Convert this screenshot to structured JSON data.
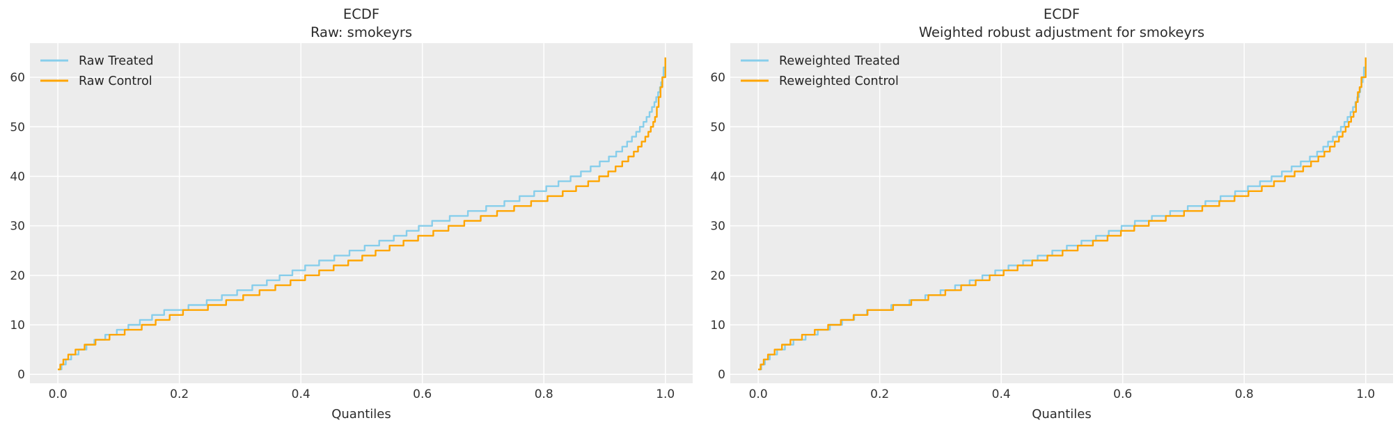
{
  "figure": {
    "background": "#ffffff",
    "plot_background": "#ECECEC",
    "grid_color": "#ffffff",
    "text_color": "#2b2b2b",
    "tick_color": "#333333",
    "treated_color": "#87CEEB",
    "control_color": "#FFA500"
  },
  "chart_data": [
    {
      "type": "line",
      "step": true,
      "title": "ECDF",
      "subtitle": "Raw: smokeyrs",
      "xlabel": "Quantiles",
      "ylabel": "",
      "grid": true,
      "legend_position": "upper-left",
      "xlim": [
        -0.046,
        1.045
      ],
      "ylim": [
        -1.8,
        66.9
      ],
      "xticks": [
        0.0,
        0.2,
        0.4,
        0.6,
        0.8,
        1.0
      ],
      "xtick_labels": [
        "0.0",
        "0.2",
        "0.4",
        "0.6",
        "0.8",
        "1.0"
      ],
      "yticks": [
        0,
        10,
        20,
        30,
        40,
        50,
        60
      ],
      "ytick_labels": [
        "0",
        "10",
        "20",
        "30",
        "40",
        "50",
        "60"
      ],
      "series": [
        {
          "name": "Raw Treated",
          "color": "#87CEEB",
          "points": [
            [
              0.0,
              1
            ],
            [
              0.006,
              2
            ],
            [
              0.013,
              3
            ],
            [
              0.022,
              4
            ],
            [
              0.034,
              5
            ],
            [
              0.047,
              6
            ],
            [
              0.06,
              7
            ],
            [
              0.078,
              8
            ],
            [
              0.097,
              9
            ],
            [
              0.116,
              10
            ],
            [
              0.135,
              11
            ],
            [
              0.155,
              12
            ],
            [
              0.175,
              13
            ],
            [
              0.215,
              14
            ],
            [
              0.245,
              15
            ],
            [
              0.27,
              16
            ],
            [
              0.295,
              17
            ],
            [
              0.32,
              18
            ],
            [
              0.344,
              19
            ],
            [
              0.365,
              20
            ],
            [
              0.386,
              21
            ],
            [
              0.407,
              22
            ],
            [
              0.43,
              23
            ],
            [
              0.455,
              24
            ],
            [
              0.48,
              25
            ],
            [
              0.505,
              26
            ],
            [
              0.529,
              27
            ],
            [
              0.553,
              28
            ],
            [
              0.574,
              29
            ],
            [
              0.594,
              30
            ],
            [
              0.616,
              31
            ],
            [
              0.645,
              32
            ],
            [
              0.675,
              33
            ],
            [
              0.705,
              34
            ],
            [
              0.735,
              35
            ],
            [
              0.76,
              36
            ],
            [
              0.784,
              37
            ],
            [
              0.804,
              38
            ],
            [
              0.824,
              39
            ],
            [
              0.844,
              40
            ],
            [
              0.861,
              41
            ],
            [
              0.877,
              42
            ],
            [
              0.892,
              43
            ],
            [
              0.907,
              44
            ],
            [
              0.919,
              45
            ],
            [
              0.929,
              46
            ],
            [
              0.937,
              47
            ],
            [
              0.945,
              48
            ],
            [
              0.952,
              49
            ],
            [
              0.958,
              50
            ],
            [
              0.964,
              51
            ],
            [
              0.969,
              52
            ],
            [
              0.974,
              53
            ],
            [
              0.978,
              54
            ],
            [
              0.982,
              55
            ],
            [
              0.985,
              56
            ],
            [
              0.988,
              57
            ],
            [
              0.991,
              58
            ],
            [
              0.993,
              59
            ],
            [
              0.995,
              60
            ],
            [
              0.997,
              62
            ],
            [
              1.0,
              64
            ]
          ]
        },
        {
          "name": "Raw Control",
          "color": "#FFA500",
          "points": [
            [
              0.0,
              1
            ],
            [
              0.004,
              2
            ],
            [
              0.009,
              3
            ],
            [
              0.017,
              4
            ],
            [
              0.029,
              5
            ],
            [
              0.044,
              6
            ],
            [
              0.062,
              7
            ],
            [
              0.085,
              8
            ],
            [
              0.11,
              9
            ],
            [
              0.138,
              10
            ],
            [
              0.161,
              11
            ],
            [
              0.184,
              12
            ],
            [
              0.206,
              13
            ],
            [
              0.247,
              14
            ],
            [
              0.277,
              15
            ],
            [
              0.305,
              16
            ],
            [
              0.332,
              17
            ],
            [
              0.358,
              18
            ],
            [
              0.383,
              19
            ],
            [
              0.407,
              20
            ],
            [
              0.43,
              21
            ],
            [
              0.454,
              22
            ],
            [
              0.478,
              23
            ],
            [
              0.501,
              24
            ],
            [
              0.523,
              25
            ],
            [
              0.546,
              26
            ],
            [
              0.569,
              27
            ],
            [
              0.593,
              28
            ],
            [
              0.618,
              29
            ],
            [
              0.643,
              30
            ],
            [
              0.669,
              31
            ],
            [
              0.696,
              32
            ],
            [
              0.723,
              33
            ],
            [
              0.751,
              34
            ],
            [
              0.779,
              35
            ],
            [
              0.806,
              36
            ],
            [
              0.831,
              37
            ],
            [
              0.853,
              38
            ],
            [
              0.873,
              39
            ],
            [
              0.891,
              40
            ],
            [
              0.906,
              41
            ],
            [
              0.918,
              42
            ],
            [
              0.929,
              43
            ],
            [
              0.939,
              44
            ],
            [
              0.948,
              45
            ],
            [
              0.955,
              46
            ],
            [
              0.961,
              47
            ],
            [
              0.967,
              48
            ],
            [
              0.972,
              49
            ],
            [
              0.976,
              50
            ],
            [
              0.98,
              51
            ],
            [
              0.983,
              52
            ],
            [
              0.986,
              54
            ],
            [
              0.989,
              56
            ],
            [
              0.992,
              58
            ],
            [
              0.995,
              60
            ],
            [
              1.0,
              64
            ]
          ]
        }
      ]
    },
    {
      "type": "line",
      "step": true,
      "title": "ECDF",
      "subtitle": "Weighted robust adjustment for smokeyrs",
      "xlabel": "Quantiles",
      "ylabel": "",
      "grid": true,
      "legend_position": "upper-left",
      "xlim": [
        -0.046,
        1.045
      ],
      "ylim": [
        -1.8,
        66.9
      ],
      "xticks": [
        0.0,
        0.2,
        0.4,
        0.6,
        0.8,
        1.0
      ],
      "xtick_labels": [
        "0.0",
        "0.2",
        "0.4",
        "0.6",
        "0.8",
        "1.0"
      ],
      "yticks": [
        0,
        10,
        20,
        30,
        40,
        50,
        60
      ],
      "ytick_labels": [
        "0",
        "10",
        "20",
        "30",
        "40",
        "50",
        "60"
      ],
      "series": [
        {
          "name": "Reweighted Treated",
          "color": "#87CEEB",
          "points": [
            [
              0.0,
              1
            ],
            [
              0.005,
              2
            ],
            [
              0.011,
              3
            ],
            [
              0.019,
              4
            ],
            [
              0.031,
              5
            ],
            [
              0.044,
              6
            ],
            [
              0.058,
              7
            ],
            [
              0.078,
              8
            ],
            [
              0.098,
              9
            ],
            [
              0.118,
              10
            ],
            [
              0.138,
              11
            ],
            [
              0.158,
              12
            ],
            [
              0.179,
              13
            ],
            [
              0.219,
              14
            ],
            [
              0.249,
              15
            ],
            [
              0.275,
              16
            ],
            [
              0.3,
              17
            ],
            [
              0.324,
              18
            ],
            [
              0.348,
              19
            ],
            [
              0.369,
              20
            ],
            [
              0.39,
              21
            ],
            [
              0.412,
              22
            ],
            [
              0.436,
              23
            ],
            [
              0.46,
              24
            ],
            [
              0.484,
              25
            ],
            [
              0.508,
              26
            ],
            [
              0.532,
              27
            ],
            [
              0.556,
              28
            ],
            [
              0.577,
              29
            ],
            [
              0.598,
              30
            ],
            [
              0.62,
              31
            ],
            [
              0.648,
              32
            ],
            [
              0.678,
              33
            ],
            [
              0.707,
              34
            ],
            [
              0.736,
              35
            ],
            [
              0.761,
              36
            ],
            [
              0.785,
              37
            ],
            [
              0.806,
              38
            ],
            [
              0.826,
              39
            ],
            [
              0.845,
              40
            ],
            [
              0.862,
              41
            ],
            [
              0.878,
              42
            ],
            [
              0.893,
              43
            ],
            [
              0.908,
              44
            ],
            [
              0.92,
              45
            ],
            [
              0.93,
              46
            ],
            [
              0.938,
              47
            ],
            [
              0.946,
              48
            ],
            [
              0.953,
              49
            ],
            [
              0.959,
              50
            ],
            [
              0.965,
              51
            ],
            [
              0.97,
              52
            ],
            [
              0.975,
              53
            ],
            [
              0.979,
              54
            ],
            [
              0.983,
              55
            ],
            [
              0.986,
              56
            ],
            [
              0.989,
              57
            ],
            [
              0.991,
              58
            ],
            [
              0.993,
              59
            ],
            [
              0.995,
              60
            ],
            [
              0.997,
              62
            ],
            [
              1.0,
              64
            ]
          ]
        },
        {
          "name": "Reweighted Control",
          "color": "#FFA500",
          "points": [
            [
              0.0,
              1
            ],
            [
              0.004,
              2
            ],
            [
              0.009,
              3
            ],
            [
              0.016,
              4
            ],
            [
              0.027,
              5
            ],
            [
              0.039,
              6
            ],
            [
              0.053,
              7
            ],
            [
              0.072,
              8
            ],
            [
              0.093,
              9
            ],
            [
              0.115,
              10
            ],
            [
              0.136,
              11
            ],
            [
              0.157,
              12
            ],
            [
              0.18,
              13
            ],
            [
              0.222,
              14
            ],
            [
              0.252,
              15
            ],
            [
              0.28,
              16
            ],
            [
              0.308,
              17
            ],
            [
              0.334,
              18
            ],
            [
              0.358,
              19
            ],
            [
              0.381,
              20
            ],
            [
              0.404,
              21
            ],
            [
              0.427,
              22
            ],
            [
              0.451,
              23
            ],
            [
              0.476,
              24
            ],
            [
              0.501,
              25
            ],
            [
              0.526,
              26
            ],
            [
              0.551,
              27
            ],
            [
              0.575,
              28
            ],
            [
              0.597,
              29
            ],
            [
              0.619,
              30
            ],
            [
              0.643,
              31
            ],
            [
              0.671,
              32
            ],
            [
              0.701,
              33
            ],
            [
              0.731,
              34
            ],
            [
              0.759,
              35
            ],
            [
              0.784,
              36
            ],
            [
              0.807,
              37
            ],
            [
              0.829,
              38
            ],
            [
              0.849,
              39
            ],
            [
              0.867,
              40
            ],
            [
              0.883,
              41
            ],
            [
              0.897,
              42
            ],
            [
              0.91,
              43
            ],
            [
              0.922,
              44
            ],
            [
              0.932,
              45
            ],
            [
              0.941,
              46
            ],
            [
              0.949,
              47
            ],
            [
              0.956,
              48
            ],
            [
              0.962,
              49
            ],
            [
              0.967,
              50
            ],
            [
              0.972,
              51
            ],
            [
              0.976,
              52
            ],
            [
              0.98,
              53
            ],
            [
              0.984,
              55
            ],
            [
              0.987,
              57
            ],
            [
              0.99,
              58
            ],
            [
              0.993,
              60
            ],
            [
              1.0,
              64
            ]
          ]
        }
      ]
    }
  ]
}
